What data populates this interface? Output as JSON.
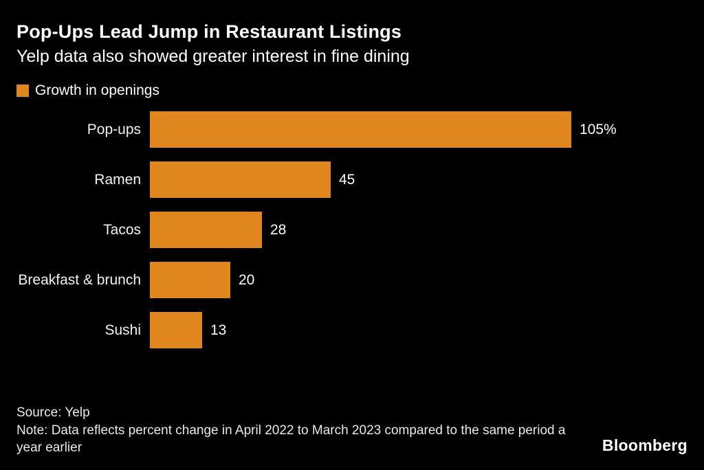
{
  "chart_data": {
    "type": "bar",
    "orientation": "horizontal",
    "title": "Pop-Ups Lead Jump in Restaurant Listings",
    "subtitle": "Yelp data also showed greater interest in fine dining",
    "legend": {
      "label": "Growth in openings",
      "color": "#E0861E"
    },
    "categories": [
      "Pop-ups",
      "Ramen",
      "Tacos",
      "Breakfast & brunch",
      "Sushi"
    ],
    "values": [
      105,
      45,
      28,
      20,
      13
    ],
    "value_labels": [
      "105%",
      "45",
      "28",
      "20",
      "13"
    ],
    "xlim": [
      0,
      105
    ],
    "bar_color": "#E0861E",
    "background_color": "#000000",
    "grid": false,
    "legend_position": "top-left"
  },
  "footer": {
    "source": "Source: Yelp",
    "note": "Note: Data reflects percent change in April 2022 to March 2023 compared to the same period a year earlier",
    "brand": "Bloomberg"
  }
}
